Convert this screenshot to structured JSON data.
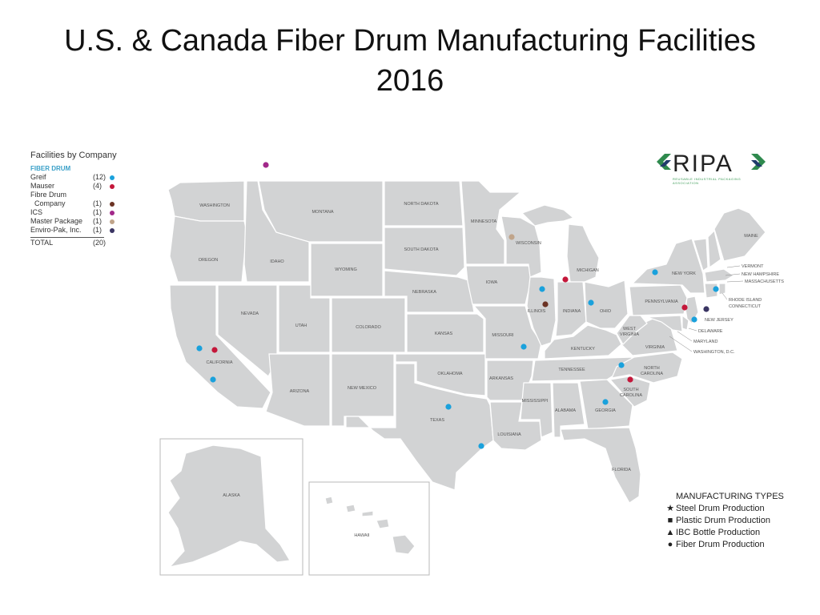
{
  "title": {
    "line1": "U.S. & Canada Fiber Drum Manufacturing Facilities",
    "line2": "2016"
  },
  "legend": {
    "title": "Facilities by Company",
    "section": "FIBER DRUM",
    "rows": [
      {
        "name": "Greif",
        "count": "(12)",
        "color": "#1aa1dc"
      },
      {
        "name": "Mauser",
        "count": "(4)",
        "color": "#c4173a"
      },
      {
        "name": "Fibre Drum",
        "count": "",
        "color": ""
      },
      {
        "name": "  Company",
        "count": "(1)",
        "color": "#6b3324"
      },
      {
        "name": "ICS",
        "count": "(1)",
        "color": "#a2288a"
      },
      {
        "name": "Master Package",
        "count": "(1)",
        "color": "#c0a48a"
      },
      {
        "name": "Enviro-Pak, Inc.",
        "count": "(1)",
        "color": "#3a3563"
      }
    ],
    "total_label": "TOTAL",
    "total_count": "(20)"
  },
  "logo": {
    "text": "RIPA",
    "subtitle": "REUSABLE INDUSTRIAL PACKAGING ASSOCIATION"
  },
  "manufacturing_types": {
    "title": "MANUFACTURING TYPES",
    "items": [
      {
        "symbol": "★",
        "label": "Steel Drum Production"
      },
      {
        "symbol": "■",
        "label": "Plastic Drum Production"
      },
      {
        "symbol": "▲",
        "label": "IBC Bottle Production"
      },
      {
        "symbol": "●",
        "label": "Fiber Drum Production"
      }
    ]
  },
  "state_labels": {
    "washington": "WASHINGTON",
    "oregon": "OREGON",
    "california": "CALIFORNIA",
    "nevada": "NEVADA",
    "idaho": "IDAHO",
    "montana": "MONTANA",
    "wyoming": "WYOMING",
    "utah": "UTAH",
    "arizona": "ARIZONA",
    "colorado": "COLORADO",
    "new_mexico": "NEW MEXICO",
    "north_dakota": "NORTH DAKOTA",
    "south_dakota": "SOUTH DAKOTA",
    "nebraska": "NEBRASKA",
    "kansas": "KANSAS",
    "oklahoma": "OKLAHOMA",
    "texas": "TEXAS",
    "minnesota": "MINNESOTA",
    "iowa": "IOWA",
    "missouri": "MISSOURI",
    "arkansas": "ARKANSAS",
    "louisiana": "LOUISIANA",
    "wisconsin": "WISCONSIN",
    "illinois": "ILLINOIS",
    "michigan": "MICHIGAN",
    "indiana": "INDIANA",
    "ohio": "OHIO",
    "kentucky": "KENTUCKY",
    "tennessee": "TENNESSEE",
    "mississippi": "MISSISSIPPI",
    "alabama": "ALABAMA",
    "georgia": "GEORGIA",
    "florida": "FLORIDA",
    "south_carolina_1": "SOUTH",
    "south_carolina_2": "CAROLINA",
    "north_carolina_1": "NORTH",
    "north_carolina_2": "CAROLINA",
    "virginia": "VIRGINIA",
    "west_virginia_1": "WEST",
    "west_virginia_2": "VIRGINIA",
    "pennsylvania": "PENNSYLVANIA",
    "new_york": "NEW YORK",
    "maine": "MAINE",
    "vermont": "VERMONT",
    "new_hampshire": "NEW HAMPSHIRE",
    "massachusetts": "MASSACHUSETTS",
    "rhode_island": "RHODE ISLAND",
    "connecticut": "CONNECTICUT",
    "new_jersey": "NEW JERSEY",
    "delaware": "DELAWARE",
    "maryland": "MARYLAND",
    "washington_dc": "WASHINGTON, D.C.",
    "alaska": "ALASKA",
    "hawaii": "HAWAII"
  },
  "facilities": [
    {
      "place": "Canada (British Columbia)",
      "company": "ICS"
    },
    {
      "place": "California",
      "company": "Greif"
    },
    {
      "place": "California",
      "company": "Mauser"
    },
    {
      "place": "California (south)",
      "company": "Greif"
    },
    {
      "place": "Texas",
      "company": "Greif"
    },
    {
      "place": "Texas (Houston)",
      "company": "Greif"
    },
    {
      "place": "Missouri",
      "company": "Greif"
    },
    {
      "place": "Wisconsin",
      "company": "Master Package"
    },
    {
      "place": "Illinois",
      "company": "Greif"
    },
    {
      "place": "Illinois",
      "company": "Fibre Drum Company"
    },
    {
      "place": "Michigan/Indiana",
      "company": "Mauser"
    },
    {
      "place": "Ohio",
      "company": "Greif"
    },
    {
      "place": "New York",
      "company": "Greif"
    },
    {
      "place": "Connecticut",
      "company": "Greif"
    },
    {
      "place": "New Jersey",
      "company": "Mauser"
    },
    {
      "place": "New Jersey",
      "company": "Enviro-Pak, Inc."
    },
    {
      "place": "Delaware/Maryland",
      "company": "Greif"
    },
    {
      "place": "North Carolina",
      "company": "Greif"
    },
    {
      "place": "South Carolina",
      "company": "Mauser"
    },
    {
      "place": "Georgia",
      "company": "Greif"
    }
  ]
}
